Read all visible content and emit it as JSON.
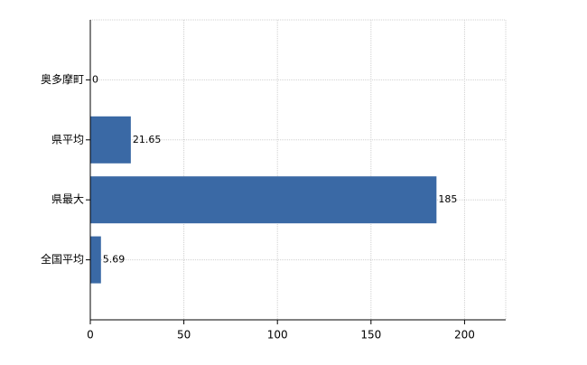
{
  "chart_data": {
    "type": "hbar",
    "categories": [
      "奥多摩町",
      "県平均",
      "県最大",
      "全国平均"
    ],
    "values": [
      0,
      21.65,
      185,
      5.69
    ],
    "color": "#3a69a5",
    "xlim": [
      0,
      222
    ],
    "xticks": [
      0,
      50,
      100,
      150,
      200
    ],
    "grid": true
  }
}
